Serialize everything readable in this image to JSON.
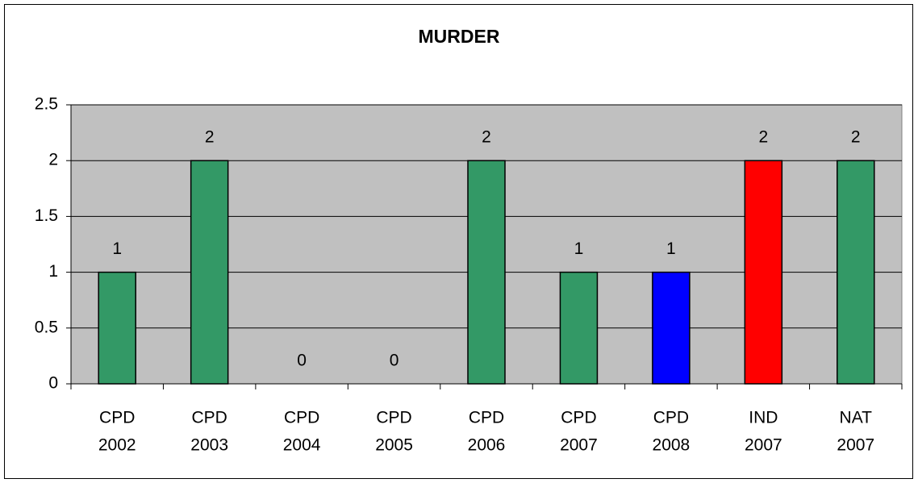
{
  "chart_data": {
    "type": "bar",
    "title": "MURDER",
    "categories": [
      [
        "CPD",
        "2002"
      ],
      [
        "CPD",
        "2003"
      ],
      [
        "CPD",
        "2004"
      ],
      [
        "CPD",
        "2005"
      ],
      [
        "CPD",
        "2006"
      ],
      [
        "CPD",
        "2007"
      ],
      [
        "CPD",
        "2008"
      ],
      [
        "IND",
        "2007"
      ],
      [
        "NAT",
        "2007"
      ]
    ],
    "values": [
      1,
      2,
      0,
      0,
      2,
      1,
      1,
      2,
      2
    ],
    "colors": [
      "#339966",
      "#339966",
      "#339966",
      "#339966",
      "#339966",
      "#339966",
      "#0000ff",
      "#ff0000",
      "#339966"
    ],
    "ylim": [
      0,
      2.5
    ],
    "yticks": [
      0,
      0.5,
      1,
      1.5,
      2,
      2.5
    ],
    "grid": true
  }
}
